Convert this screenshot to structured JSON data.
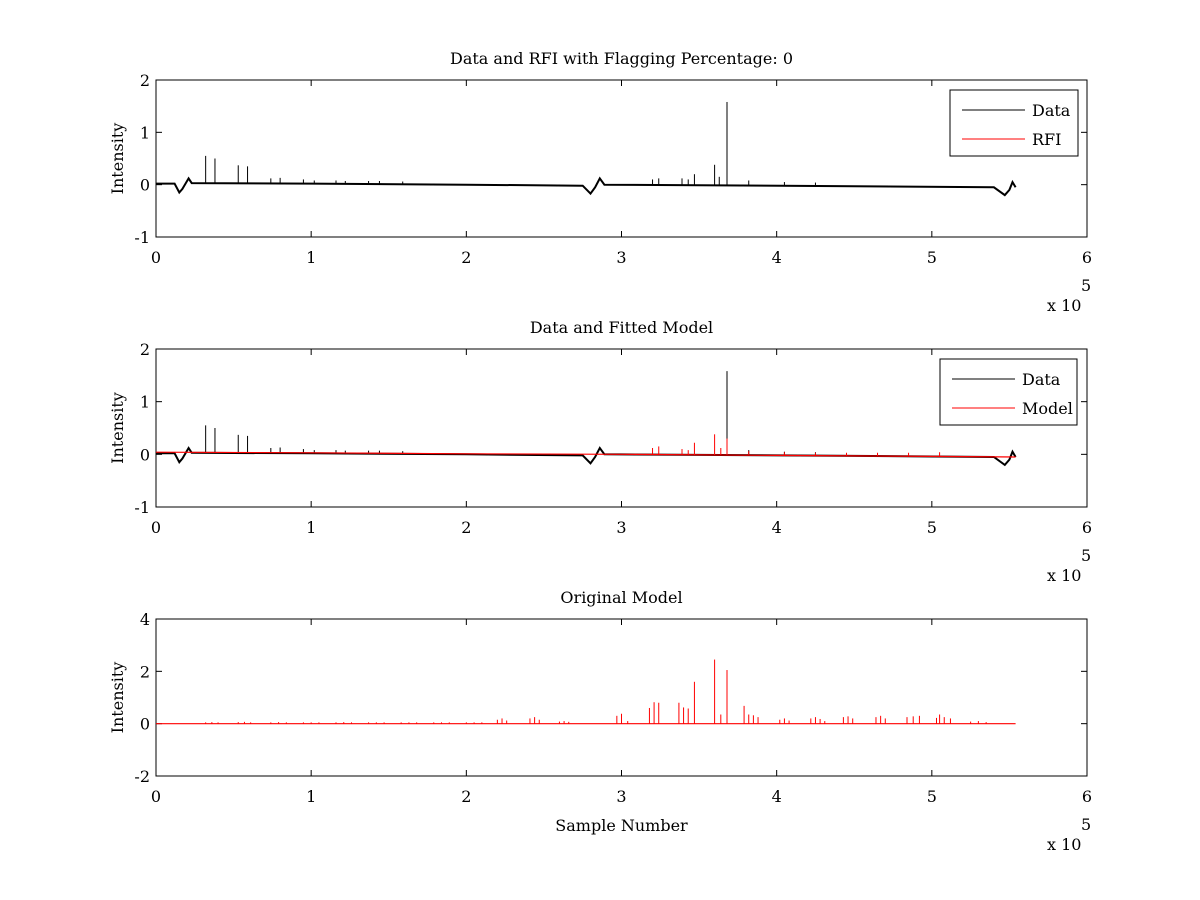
{
  "colors": {
    "data": "#000000",
    "rfi": "#ff0000",
    "model": "#ff0000",
    "background": "#ffffff"
  },
  "x_multiplier": {
    "base": "x 10",
    "exponent": "5"
  },
  "chart_data": [
    {
      "type": "line",
      "title": "Data and RFI with Flagging Percentage: 0",
      "xlabel": "",
      "ylabel": "Intensity",
      "xlim": [
        0,
        6
      ],
      "ylim": [
        -1,
        2
      ],
      "x_ticks": [
        "0",
        "1",
        "2",
        "3",
        "4",
        "5",
        "6"
      ],
      "y_ticks": [
        "-1",
        "0",
        "1",
        "2"
      ],
      "legend": {
        "placement": "top-right",
        "entries": [
          "Data",
          "RFI"
        ]
      },
      "series": [
        {
          "name": "Data",
          "color": "#000000",
          "baseline": [
            [
              0,
              0.02
            ],
            [
              0.12,
              0.02
            ],
            [
              0.15,
              -0.15
            ],
            [
              0.17,
              -0.08
            ],
            [
              0.21,
              0.12
            ],
            [
              0.23,
              0.03
            ],
            [
              1.0,
              0.02
            ],
            [
              2.0,
              0.0
            ],
            [
              2.75,
              -0.02
            ],
            [
              2.8,
              -0.17
            ],
            [
              2.83,
              -0.05
            ],
            [
              2.86,
              0.12
            ],
            [
              2.89,
              0.0
            ],
            [
              3.5,
              -0.01
            ],
            [
              4.5,
              -0.03
            ],
            [
              5.4,
              -0.05
            ],
            [
              5.47,
              -0.2
            ],
            [
              5.5,
              -0.1
            ],
            [
              5.52,
              0.05
            ],
            [
              5.54,
              -0.05
            ]
          ],
          "spikes": [
            [
              0.32,
              0.55
            ],
            [
              0.38,
              0.5
            ],
            [
              0.53,
              0.37
            ],
            [
              0.59,
              0.35
            ],
            [
              0.74,
              0.12
            ],
            [
              0.8,
              0.13
            ],
            [
              0.95,
              0.1
            ],
            [
              1.02,
              0.08
            ],
            [
              1.16,
              0.08
            ],
            [
              1.22,
              0.07
            ],
            [
              1.37,
              0.07
            ],
            [
              1.44,
              0.07
            ],
            [
              1.59,
              0.06
            ],
            [
              3.2,
              0.1
            ],
            [
              3.24,
              0.12
            ],
            [
              3.39,
              0.12
            ],
            [
              3.43,
              0.1
            ],
            [
              3.47,
              0.2
            ],
            [
              3.6,
              0.38
            ],
            [
              3.63,
              0.15
            ],
            [
              3.68,
              1.58
            ],
            [
              3.82,
              0.08
            ],
            [
              4.05,
              0.05
            ],
            [
              4.25,
              0.04
            ]
          ]
        },
        {
          "name": "RFI",
          "color": "#ff0000",
          "baseline": [],
          "spikes": []
        }
      ]
    },
    {
      "type": "line",
      "title": "Data and Fitted Model",
      "xlabel": "",
      "ylabel": "Intensity",
      "xlim": [
        0,
        6
      ],
      "ylim": [
        -1,
        2
      ],
      "x_ticks": [
        "0",
        "1",
        "2",
        "3",
        "4",
        "5",
        "6"
      ],
      "y_ticks": [
        "-1",
        "0",
        "1",
        "2"
      ],
      "legend": {
        "placement": "top-right",
        "entries": [
          "Data",
          "Model"
        ]
      },
      "series": [
        {
          "name": "Data",
          "color": "#000000",
          "baseline": [
            [
              0,
              0.02
            ],
            [
              0.12,
              0.02
            ],
            [
              0.15,
              -0.15
            ],
            [
              0.17,
              -0.08
            ],
            [
              0.21,
              0.12
            ],
            [
              0.23,
              0.03
            ],
            [
              1.0,
              0.02
            ],
            [
              2.0,
              0.0
            ],
            [
              2.75,
              -0.02
            ],
            [
              2.8,
              -0.17
            ],
            [
              2.83,
              -0.05
            ],
            [
              2.86,
              0.12
            ],
            [
              2.89,
              0.0
            ],
            [
              3.5,
              -0.01
            ],
            [
              4.5,
              -0.03
            ],
            [
              5.4,
              -0.05
            ],
            [
              5.47,
              -0.2
            ],
            [
              5.5,
              -0.1
            ],
            [
              5.52,
              0.05
            ],
            [
              5.54,
              -0.05
            ]
          ],
          "spikes": [
            [
              0.32,
              0.55
            ],
            [
              0.38,
              0.5
            ],
            [
              0.53,
              0.37
            ],
            [
              0.59,
              0.35
            ],
            [
              0.74,
              0.12
            ],
            [
              0.8,
              0.13
            ],
            [
              0.95,
              0.1
            ],
            [
              1.02,
              0.08
            ],
            [
              1.16,
              0.08
            ],
            [
              1.22,
              0.07
            ],
            [
              1.37,
              0.07
            ],
            [
              1.44,
              0.07
            ],
            [
              1.59,
              0.06
            ],
            [
              3.68,
              1.58
            ],
            [
              3.82,
              0.08
            ],
            [
              4.05,
              0.05
            ],
            [
              4.25,
              0.04
            ]
          ]
        },
        {
          "name": "Model",
          "color": "#ff0000",
          "baseline": [
            [
              0,
              0.04
            ],
            [
              1.0,
              0.03
            ],
            [
              2.0,
              0.01
            ],
            [
              3.0,
              0.0
            ],
            [
              4.0,
              -0.02
            ],
            [
              5.0,
              -0.04
            ],
            [
              5.54,
              -0.05
            ]
          ],
          "spikes": [
            [
              3.2,
              0.12
            ],
            [
              3.24,
              0.15
            ],
            [
              3.39,
              0.1
            ],
            [
              3.43,
              0.08
            ],
            [
              3.47,
              0.22
            ],
            [
              3.6,
              0.38
            ],
            [
              3.64,
              0.12
            ],
            [
              3.68,
              0.3
            ],
            [
              3.82,
              0.06
            ],
            [
              4.05,
              0.04
            ],
            [
              4.25,
              0.03
            ],
            [
              4.45,
              0.03
            ],
            [
              4.65,
              0.03
            ],
            [
              4.85,
              0.03
            ],
            [
              5.05,
              0.04
            ]
          ]
        }
      ]
    },
    {
      "type": "line",
      "title": "Original Model",
      "xlabel": "Sample Number",
      "ylabel": "Intensity",
      "xlim": [
        0,
        6
      ],
      "ylim": [
        -2,
        4
      ],
      "x_ticks": [
        "0",
        "1",
        "2",
        "3",
        "4",
        "5",
        "6"
      ],
      "y_ticks": [
        "-2",
        "0",
        "2",
        "4"
      ],
      "legend": null,
      "series": [
        {
          "name": "",
          "color": "#ff0000",
          "baseline": [
            [
              0,
              0.0
            ],
            [
              5.54,
              0.0
            ]
          ],
          "spikes": [
            [
              0.32,
              0.05
            ],
            [
              0.36,
              0.06
            ],
            [
              0.4,
              0.05
            ],
            [
              0.53,
              0.06
            ],
            [
              0.57,
              0.07
            ],
            [
              0.61,
              0.05
            ],
            [
              0.74,
              0.05
            ],
            [
              0.79,
              0.06
            ],
            [
              0.84,
              0.05
            ],
            [
              0.95,
              0.05
            ],
            [
              1.0,
              0.05
            ],
            [
              1.05,
              0.05
            ],
            [
              1.16,
              0.05
            ],
            [
              1.21,
              0.06
            ],
            [
              1.26,
              0.05
            ],
            [
              1.37,
              0.05
            ],
            [
              1.42,
              0.05
            ],
            [
              1.47,
              0.05
            ],
            [
              1.58,
              0.05
            ],
            [
              1.63,
              0.05
            ],
            [
              1.68,
              0.05
            ],
            [
              1.79,
              0.05
            ],
            [
              1.84,
              0.05
            ],
            [
              1.89,
              0.05
            ],
            [
              2.0,
              0.05
            ],
            [
              2.05,
              0.05
            ],
            [
              2.1,
              0.05
            ],
            [
              2.2,
              0.15
            ],
            [
              2.23,
              0.2
            ],
            [
              2.26,
              0.12
            ],
            [
              2.41,
              0.2
            ],
            [
              2.44,
              0.25
            ],
            [
              2.47,
              0.15
            ],
            [
              2.6,
              0.08
            ],
            [
              2.63,
              0.1
            ],
            [
              2.66,
              0.07
            ],
            [
              2.97,
              0.3
            ],
            [
              3.0,
              0.38
            ],
            [
              3.04,
              0.1
            ],
            [
              3.18,
              0.6
            ],
            [
              3.21,
              0.82
            ],
            [
              3.24,
              0.8
            ],
            [
              3.37,
              0.8
            ],
            [
              3.4,
              0.62
            ],
            [
              3.43,
              0.58
            ],
            [
              3.47,
              1.6
            ],
            [
              3.6,
              2.45
            ],
            [
              3.64,
              0.35
            ],
            [
              3.68,
              2.05
            ],
            [
              3.79,
              0.68
            ],
            [
              3.82,
              0.35
            ],
            [
              3.85,
              0.32
            ],
            [
              3.88,
              0.25
            ],
            [
              4.02,
              0.15
            ],
            [
              4.05,
              0.2
            ],
            [
              4.08,
              0.12
            ],
            [
              4.22,
              0.2
            ],
            [
              4.25,
              0.25
            ],
            [
              4.28,
              0.18
            ],
            [
              4.31,
              0.1
            ],
            [
              4.43,
              0.25
            ],
            [
              4.46,
              0.28
            ],
            [
              4.49,
              0.2
            ],
            [
              4.64,
              0.25
            ],
            [
              4.67,
              0.3
            ],
            [
              4.7,
              0.2
            ],
            [
              4.84,
              0.25
            ],
            [
              4.88,
              0.28
            ],
            [
              4.92,
              0.3
            ],
            [
              5.03,
              0.22
            ],
            [
              5.05,
              0.35
            ],
            [
              5.08,
              0.25
            ],
            [
              5.12,
              0.2
            ],
            [
              5.25,
              0.08
            ],
            [
              5.3,
              0.1
            ],
            [
              5.35,
              0.06
            ]
          ]
        }
      ]
    }
  ]
}
